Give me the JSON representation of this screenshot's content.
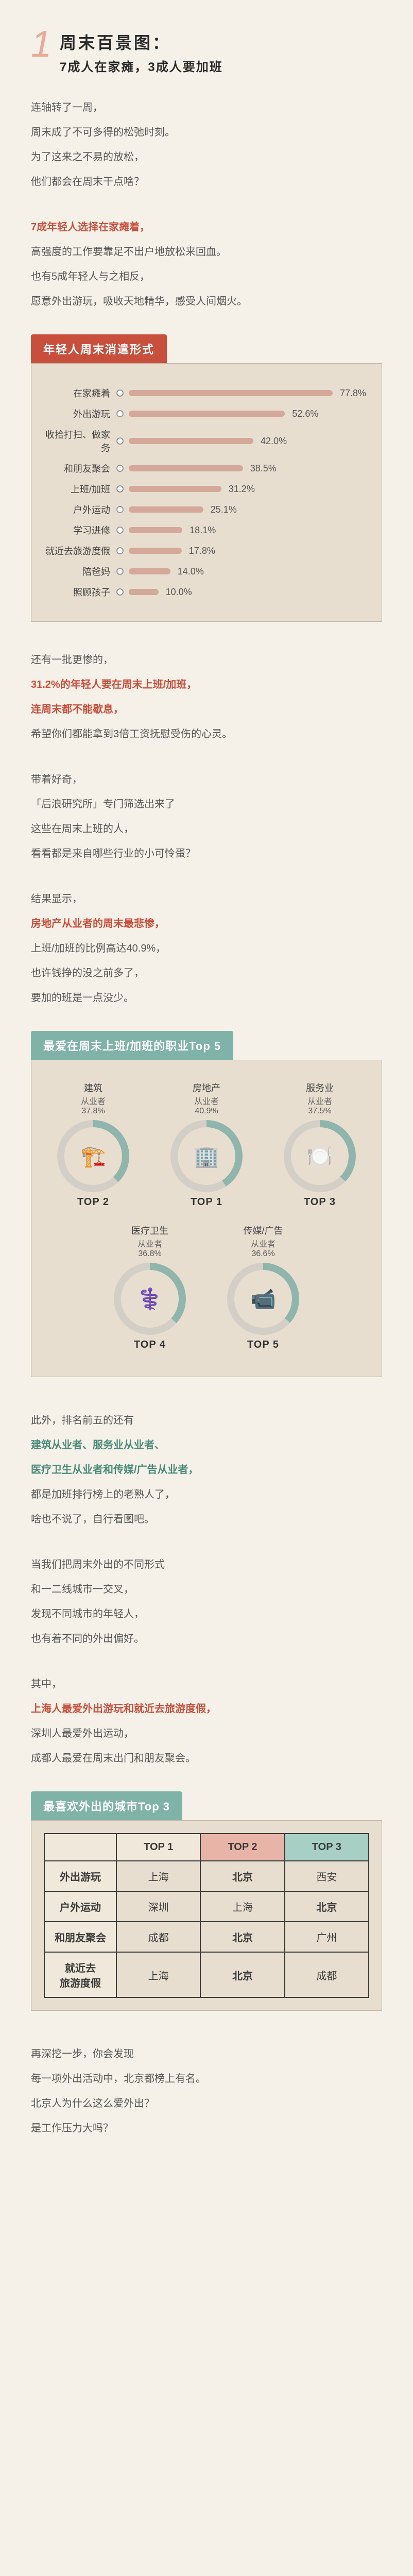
{
  "section": {
    "num": "1",
    "title1": "周末百景图：",
    "title2": "7成人在家瘫，3成人要加班"
  },
  "p1": {
    "l1": "连轴转了一周，",
    "l2": "周末成了不可多得的松弛时刻。",
    "l3": "为了这来之不易的放松，",
    "l4": "他们都会在周末干点啥？"
  },
  "p2": {
    "l1": "7成年轻人选择在家瘫着，",
    "l2": "高强度的工作要靠足不出户地放松来回血。",
    "l3": "也有5成年轻人与之相反，",
    "l4": "愿意外出游玩，吸收天地精华，感受人间烟火。"
  },
  "chart1": {
    "title": "年轻人周末消遣形式",
    "bar_color": "#d4a89a",
    "max": 80,
    "rows": [
      {
        "label": "在家瘫着",
        "val": 77.8
      },
      {
        "label": "外出游玩",
        "val": 52.6
      },
      {
        "label": "收拾打扫、做家务",
        "val": 42.0
      },
      {
        "label": "和朋友聚会",
        "val": 38.5
      },
      {
        "label": "上班/加班",
        "val": 31.2
      },
      {
        "label": "户外运动",
        "val": 25.1
      },
      {
        "label": "学习进修",
        "val": 18.1
      },
      {
        "label": "就近去旅游度假",
        "val": 17.8
      },
      {
        "label": "陪爸妈",
        "val": 14.0
      },
      {
        "label": "照顾孩子",
        "val": 10.0
      }
    ]
  },
  "p3": {
    "l1": "还有一批更惨的，",
    "l2a": "31.2%的年轻人要在周末上班/加班，",
    "l2b": "连周末都不能歇息，",
    "l3": "希望你们都能拿到3倍工资抚慰受伤的心灵。"
  },
  "p4": {
    "l1": "带着好奇，",
    "l2": "「后浪研究所」专门筛选出来了",
    "l3": "这些在周末上班的人，",
    "l4": "看看都是来自哪些行业的小可怜蛋？"
  },
  "p5": {
    "l1": "结果显示，",
    "l2": "房地产从业者的周末最悲惨，",
    "l3": "上班/加班的比例高达40.9%，",
    "l4": "也许钱挣的没之前多了，",
    "l5": "要加的班是一点没少。"
  },
  "chart2": {
    "title": "最爱在周末上班/加班的职业Top 5",
    "ring_fill": "#8fb5ac",
    "ring_bg": "#d4cfc6",
    "items": [
      {
        "name": "建筑",
        "sub": "从业者",
        "pct": 37.8,
        "rank": "TOP 2",
        "icon": "🏗️"
      },
      {
        "name": "房地产",
        "sub": "从业者",
        "pct": 40.9,
        "rank": "TOP 1",
        "icon": "🏢"
      },
      {
        "name": "服务业",
        "sub": "从业者",
        "pct": 37.5,
        "rank": "TOP 3",
        "icon": "🍽️"
      },
      {
        "name": "医疗卫生",
        "sub": "从业者",
        "pct": 36.8,
        "rank": "TOP 4",
        "icon": "⚕️"
      },
      {
        "name": "传媒/广告",
        "sub": "从业者",
        "pct": 36.6,
        "rank": "TOP 5",
        "icon": "📹"
      }
    ]
  },
  "p6": {
    "l1": "此外，排名前五的还有",
    "l2a": "建筑从业者、服务业从业者、",
    "l2b": "医疗卫生从业者和传媒/广告从业者，",
    "l3": "都是加班排行榜上的老熟人了，",
    "l4": "啥也不说了，自行看图吧。"
  },
  "p7": {
    "l1": "当我们把周末外出的不同形式",
    "l2": "和一二线城市一交叉，",
    "l3": "发现不同城市的年轻人，",
    "l4": "也有着不同的外出偏好。"
  },
  "p8": {
    "l1": "其中，",
    "l2": "上海人最爱外出游玩和就近去旅游度假，",
    "l3": "深圳人最爱外出运动，",
    "l4": "成都人最爱在周末出门和朋友聚会。"
  },
  "chart3": {
    "title": "最喜欢外出的城市Top 3",
    "head": [
      "",
      "TOP 1",
      "TOP 2",
      "TOP 3"
    ],
    "head_colors": [
      "#f0e8da",
      "#f0e8da",
      "#e8b4a8",
      "#a8cfc4"
    ],
    "rows": [
      {
        "h": "外出游玩",
        "c": [
          "上海",
          "北京",
          "西安"
        ],
        "bold": [
          0,
          1,
          0
        ]
      },
      {
        "h": "户外运动",
        "c": [
          "深圳",
          "上海",
          "北京"
        ],
        "bold": [
          0,
          0,
          1
        ]
      },
      {
        "h": "和朋友聚会",
        "c": [
          "成都",
          "北京",
          "广州"
        ],
        "bold": [
          0,
          1,
          0
        ]
      },
      {
        "h": "就近去\n旅游度假",
        "c": [
          "上海",
          "北京",
          "成都"
        ],
        "bold": [
          0,
          1,
          0
        ]
      }
    ]
  },
  "p9": {
    "l1": "再深挖一步，你会发现",
    "l2": "每一项外出活动中，北京都榜上有名。",
    "l3": "北京人为什么这么爱外出？",
    "l4": "是工作压力大吗？"
  }
}
